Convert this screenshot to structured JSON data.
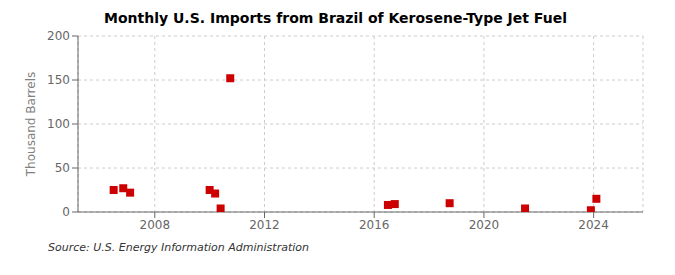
{
  "chart_data": {
    "type": "scatter",
    "title": "Monthly U.S. Imports from Brazil of Kerosene-Type Jet Fuel",
    "ylabel": "Thousand Barrels",
    "annotation": "Source: U.S. Energy Information Administration",
    "x": [
      2006.5,
      2006.85,
      2007.1,
      2010.0,
      2010.2,
      2010.4,
      2010.75,
      2016.5,
      2016.75,
      2018.75,
      2021.5,
      2023.9,
      2024.1
    ],
    "values": [
      25,
      27,
      22,
      25,
      21,
      4,
      152,
      8,
      9,
      10,
      4,
      2,
      15
    ],
    "color": "#cc0000",
    "marker": "square",
    "xlim": [
      2005.2,
      2025.8
    ],
    "ylim": [
      0,
      200
    ],
    "xticks": [
      2008,
      2012,
      2016,
      2020,
      2024
    ],
    "yticks": [
      0,
      50,
      100,
      150,
      200
    ],
    "grid": true
  }
}
